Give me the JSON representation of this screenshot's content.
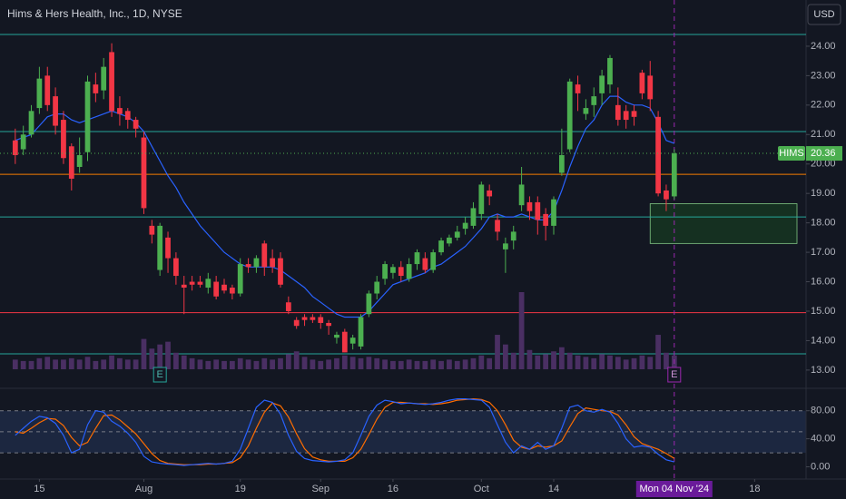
{
  "chart_data": {
    "type": "candlestick",
    "title": "Hims & Hers Health, Inc., 1D, NYSE",
    "currency": "USD",
    "symbol": "HIMS",
    "xlim": [
      -1.9,
      98.4
    ],
    "xticks": [
      {
        "value": 3,
        "label": "15"
      },
      {
        "value": 16,
        "label": "Aug"
      },
      {
        "value": 28,
        "label": "19"
      },
      {
        "value": 38,
        "label": "Sep"
      },
      {
        "value": 47,
        "label": "16"
      },
      {
        "value": 58,
        "label": "Oct"
      },
      {
        "value": 67,
        "label": "14"
      },
      {
        "value": 82,
        "label": "Mon 04 Nov '24"
      },
      {
        "value": 92,
        "label": "18"
      }
    ],
    "cursor_index": 82,
    "ylim": [
      12.38,
      25.57
    ],
    "yticks": [
      {
        "value": 13,
        "label": "13.00"
      },
      {
        "value": 14,
        "label": "14.00"
      },
      {
        "value": 15,
        "label": "15.00"
      },
      {
        "value": 16,
        "label": "16.00"
      },
      {
        "value": 17,
        "label": "17.00"
      },
      {
        "value": 18,
        "label": "18.00"
      },
      {
        "value": 19,
        "label": "19.00"
      },
      {
        "value": 20,
        "label": "20.00"
      },
      {
        "value": 21,
        "label": "21.00"
      },
      {
        "value": 22,
        "label": "22.00"
      },
      {
        "value": 23,
        "label": "23.00"
      },
      {
        "value": 24,
        "label": "24.00"
      }
    ],
    "up_color": "#4caf50",
    "down_color": "#f23645",
    "open": [
      20.8,
      20.5,
      21.0,
      21.9,
      23.0,
      22.3,
      21.5,
      20.6,
      19.9,
      20.4,
      22.7,
      22.5,
      23.8,
      21.9,
      21.8,
      21.5,
      20.9,
      17.9,
      16.4,
      17.5,
      16.8,
      15.9,
      16.0,
      16.0,
      15.8,
      16.0,
      15.9,
      15.8,
      15.6,
      16.6,
      16.5,
      17.3,
      16.8,
      16.8,
      15.3,
      14.7,
      14.8,
      14.8,
      14.8,
      14.6,
      14.1,
      14.3,
      13.9,
      13.8,
      14.9,
      15.6,
      16.1,
      16.3,
      16.5,
      16.1,
      16.6,
      16.8,
      16.4,
      17.0,
      17.3,
      17.5,
      17.8,
      17.9,
      18.3,
      19.1,
      18.1,
      17.1,
      17.4,
      18.6,
      18.7,
      18.7,
      18.3,
      17.9,
      19.7,
      20.5,
      22.7,
      21.7,
      22.0,
      22.4,
      22.7,
      22.0,
      21.8,
      21.8,
      23.1,
      23.0,
      21.6,
      19.1,
      18.9
    ],
    "high": [
      21.2,
      21.3,
      22.0,
      23.3,
      23.3,
      22.6,
      21.8,
      20.7,
      20.9,
      23.0,
      23.1,
      23.6,
      24.1,
      22.3,
      21.9,
      21.6,
      21.1,
      18.1,
      18.0,
      17.7,
      17.0,
      16.2,
      16.2,
      16.2,
      16.3,
      16.2,
      16.1,
      15.9,
      16.8,
      16.8,
      16.9,
      17.4,
      17.1,
      17.0,
      15.5,
      14.8,
      14.9,
      14.9,
      14.9,
      14.7,
      14.3,
      14.4,
      14.2,
      14.9,
      15.7,
      16.2,
      16.7,
      16.6,
      16.7,
      16.8,
      17.1,
      17.0,
      17.1,
      17.5,
      17.6,
      17.9,
      18.2,
      18.7,
      19.4,
      19.3,
      18.3,
      17.5,
      17.9,
      19.9,
      18.9,
      18.9,
      18.5,
      18.9,
      21.2,
      22.9,
      23.0,
      22.2,
      22.6,
      23.2,
      23.7,
      22.6,
      22.0,
      22.0,
      23.2,
      23.5,
      21.8,
      19.3,
      20.5
    ],
    "low": [
      20.0,
      20.3,
      20.9,
      21.7,
      21.8,
      21.0,
      20.0,
      19.1,
      19.7,
      20.1,
      22.1,
      22.2,
      21.6,
      21.3,
      21.2,
      20.9,
      18.3,
      17.3,
      16.2,
      16.3,
      15.9,
      14.9,
      15.7,
      15.8,
      15.6,
      15.4,
      15.6,
      15.4,
      15.5,
      16.3,
      16.3,
      16.2,
      16.3,
      15.8,
      14.9,
      14.4,
      14.5,
      14.6,
      14.4,
      14.2,
      13.9,
      13.6,
      13.7,
      13.7,
      14.8,
      15.4,
      15.9,
      16.1,
      16.0,
      16.0,
      16.4,
      16.3,
      16.3,
      16.9,
      17.2,
      17.4,
      17.6,
      17.8,
      18.1,
      18.6,
      17.4,
      16.3,
      17.1,
      18.4,
      18.1,
      17.6,
      17.4,
      17.6,
      19.6,
      20.4,
      21.8,
      21.5,
      21.6,
      22.0,
      22.4,
      21.3,
      21.2,
      21.3,
      22.2,
      21.8,
      18.9,
      18.4,
      18.8
    ],
    "close": [
      20.3,
      21.0,
      21.8,
      22.9,
      22.0,
      21.3,
      20.2,
      19.5,
      20.3,
      22.8,
      22.4,
      23.3,
      21.8,
      21.7,
      21.5,
      21.2,
      18.5,
      17.6,
      17.9,
      16.8,
      16.2,
      15.8,
      15.9,
      15.9,
      16.1,
      15.5,
      15.7,
      15.6,
      16.6,
      16.5,
      16.8,
      16.5,
      16.5,
      15.9,
      15.0,
      14.5,
      14.7,
      14.7,
      14.6,
      14.5,
      14.2,
      13.6,
      14.1,
      14.8,
      15.6,
      16.0,
      16.6,
      16.5,
      16.2,
      16.6,
      17.0,
      16.4,
      17.0,
      17.4,
      17.5,
      17.7,
      18.0,
      18.5,
      19.3,
      18.9,
      17.7,
      17.3,
      17.7,
      19.3,
      18.4,
      18.1,
      17.9,
      18.8,
      20.3,
      22.8,
      22.4,
      21.9,
      22.3,
      23.0,
      23.6,
      21.5,
      21.5,
      21.6,
      22.4,
      22.2,
      19.0,
      18.8,
      20.36
    ],
    "ma": {
      "color": "#2962ff",
      "values": [
        20.8,
        20.9,
        21.0,
        21.3,
        21.6,
        21.7,
        21.7,
        21.5,
        21.4,
        21.5,
        21.6,
        21.7,
        21.8,
        21.7,
        21.6,
        21.4,
        21.1,
        20.6,
        20.1,
        19.6,
        19.2,
        18.7,
        18.3,
        17.9,
        17.6,
        17.3,
        17.0,
        16.8,
        16.6,
        16.5,
        16.5,
        16.5,
        16.5,
        16.4,
        16.2,
        16.0,
        15.8,
        15.5,
        15.3,
        15.1,
        14.9,
        14.8,
        14.8,
        14.8,
        15.0,
        15.3,
        15.6,
        15.9,
        16.0,
        16.1,
        16.2,
        16.3,
        16.5,
        16.6,
        16.8,
        17.0,
        17.2,
        17.5,
        17.8,
        18.2,
        18.3,
        18.2,
        18.2,
        18.3,
        18.2,
        18.1,
        18.1,
        18.4,
        19.1,
        19.9,
        20.6,
        21.2,
        21.5,
        22.0,
        22.3,
        22.3,
        22.1,
        22.0,
        22.0,
        21.9,
        21.4,
        20.8,
        20.7
      ]
    },
    "volume": {
      "color": "#4a2f63",
      "values": [
        7,
        6,
        6,
        8,
        9,
        7,
        7,
        8,
        7,
        9,
        6,
        7,
        10,
        8,
        7,
        7,
        22,
        15,
        18,
        20,
        12,
        10,
        8,
        7,
        6,
        7,
        6,
        6,
        8,
        7,
        6,
        8,
        7,
        8,
        11,
        13,
        9,
        7,
        6,
        7,
        8,
        10,
        9,
        8,
        9,
        8,
        7,
        6,
        6,
        7,
        6,
        6,
        7,
        6,
        7,
        6,
        7,
        8,
        10,
        8,
        25,
        18,
        12,
        56,
        14,
        10,
        11,
        13,
        16,
        12,
        10,
        9,
        8,
        11,
        10,
        9,
        7,
        8,
        10,
        9,
        25,
        12,
        10
      ]
    },
    "levels": [
      {
        "value": 24.4,
        "color": "#26a69a"
      },
      {
        "value": 21.1,
        "color": "#26a69a"
      },
      {
        "value": 19.65,
        "color": "#f57c00"
      },
      {
        "value": 18.2,
        "color": "#26a69a"
      },
      {
        "value": 14.95,
        "color": "#f23645"
      },
      {
        "value": 13.55,
        "color": "#26a69a"
      }
    ],
    "zone": {
      "from": 79,
      "to": 98,
      "low": 17.3,
      "high": 18.65,
      "color": "#1b5e20"
    },
    "earnings": [
      {
        "index": 18,
        "label": "E"
      },
      {
        "index": 82,
        "label": "E"
      }
    ],
    "stoch": {
      "ylim": [
        -20,
        112
      ],
      "yticks": [
        {
          "value": 0,
          "label": "0.00"
        },
        {
          "value": 40,
          "label": "40.00"
        },
        {
          "value": 80,
          "label": "80.00"
        }
      ],
      "bands": [
        20,
        50,
        80
      ],
      "k": {
        "color": "#2962ff",
        "values": [
          45,
          55,
          65,
          72,
          70,
          62,
          45,
          20,
          25,
          60,
          80,
          78,
          65,
          58,
          48,
          35,
          15,
          7,
          5,
          4,
          3,
          2,
          3,
          4,
          5,
          4,
          5,
          8,
          25,
          55,
          85,
          95,
          92,
          75,
          45,
          22,
          12,
          9,
          8,
          7,
          8,
          10,
          20,
          45,
          72,
          88,
          95,
          93,
          90,
          91,
          90,
          89,
          90,
          92,
          95,
          97,
          97,
          96,
          95,
          85,
          60,
          35,
          20,
          30,
          25,
          35,
          25,
          30,
          55,
          85,
          88,
          80,
          78,
          82,
          78,
          62,
          40,
          28,
          30,
          28,
          18,
          10,
          7
        ]
      },
      "d": {
        "color": "#ff6d00",
        "values": [
          50,
          48,
          55,
          63,
          69,
          68,
          59,
          42,
          30,
          35,
          55,
          73,
          74,
          67,
          57,
          47,
          33,
          19,
          9,
          5,
          4,
          3,
          3,
          3,
          4,
          4,
          5,
          6,
          13,
          30,
          55,
          78,
          91,
          87,
          71,
          47,
          26,
          14,
          10,
          8,
          8,
          8,
          13,
          25,
          46,
          68,
          85,
          92,
          92,
          91,
          90,
          90,
          89,
          90,
          92,
          95,
          96,
          97,
          96,
          92,
          80,
          60,
          38,
          28,
          25,
          30,
          28,
          30,
          37,
          57,
          76,
          84,
          82,
          80,
          79,
          74,
          60,
          43,
          33,
          29,
          25,
          19,
          12
        ]
      }
    }
  }
}
